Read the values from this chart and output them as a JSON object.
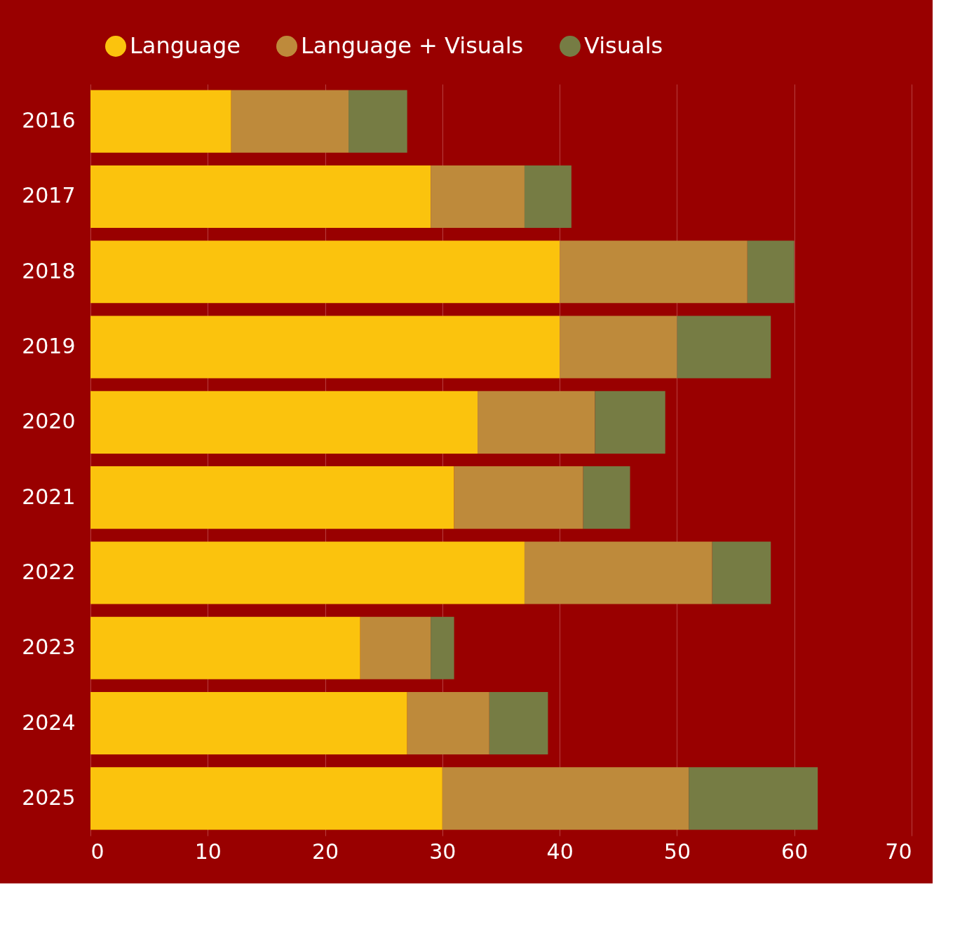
{
  "chart_data": {
    "type": "bar",
    "orientation": "horizontal",
    "stacked": true,
    "categories": [
      "2016",
      "2017",
      "2018",
      "2019",
      "2020",
      "2021",
      "2022",
      "2023",
      "2024",
      "2025"
    ],
    "series": [
      {
        "name": "Language",
        "color": "#fbc30d",
        "values": [
          12,
          29,
          40,
          40,
          33,
          31,
          37,
          23,
          27,
          30
        ]
      },
      {
        "name": "Language + Visuals",
        "color": "#be8a3b",
        "values": [
          10,
          8,
          16,
          10,
          10,
          11,
          16,
          6,
          7,
          21
        ]
      },
      {
        "name": "Visuals",
        "color": "#767c44",
        "values": [
          5,
          4,
          4,
          8,
          6,
          4,
          5,
          2,
          5,
          11
        ]
      }
    ],
    "xlim": [
      0,
      70
    ],
    "xticks": [
      0,
      10,
      20,
      30,
      40,
      50,
      60,
      70
    ],
    "grid": "x",
    "legend": "top"
  }
}
